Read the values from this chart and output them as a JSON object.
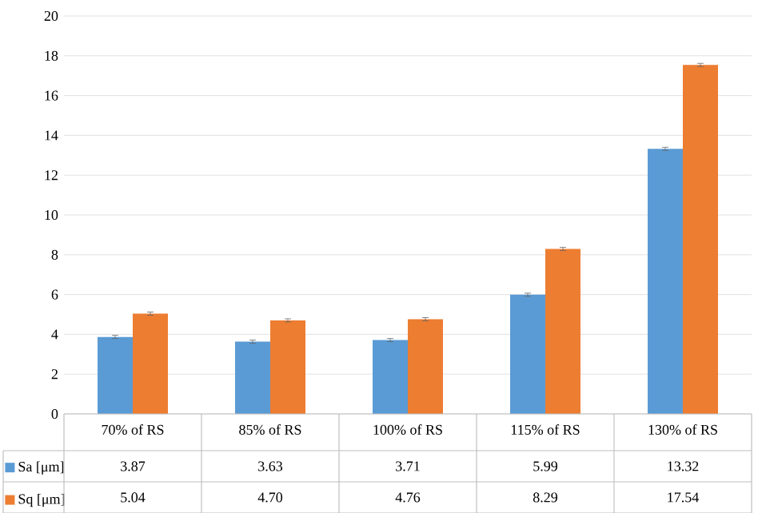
{
  "chart_data": {
    "type": "bar",
    "categories": [
      "70% of RS",
      "85% of RS",
      "100% of RS",
      "115% of RS",
      "130% of RS"
    ],
    "series": [
      {
        "name": "Sa [μm]",
        "color": "#5b9bd5",
        "values": [
          3.87,
          3.63,
          3.71,
          5.99,
          13.32
        ],
        "value_labels": [
          "3.87",
          "3.63",
          "3.71",
          "5.99",
          "13.32"
        ],
        "errors": [
          0.08,
          0.08,
          0.08,
          0.08,
          0.08
        ]
      },
      {
        "name": "Sq [μm]",
        "color": "#ed7d31",
        "values": [
          5.04,
          4.7,
          4.76,
          8.29,
          17.54
        ],
        "value_labels": [
          "5.04",
          "4.70",
          "4.76",
          "8.29",
          "17.54"
        ],
        "errors": [
          0.08,
          0.08,
          0.08,
          0.08,
          0.08
        ]
      }
    ],
    "ylim": [
      0,
      20
    ],
    "yticks": [
      0,
      2,
      4,
      6,
      8,
      10,
      12,
      14,
      16,
      18,
      20
    ],
    "grid": "y",
    "legend": "bottom left"
  }
}
